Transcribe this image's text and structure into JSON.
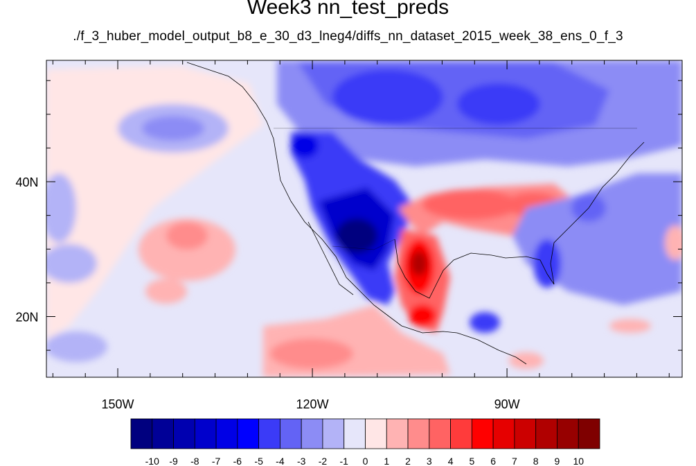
{
  "title": "Week3 nn_test_preds",
  "subtitle": "./f_3_huber_model_output_b8_e_30_d3_lneg4/diffs_nn_dataset_2015_week_38_ens_0_f_3",
  "map": {
    "lon_range": [
      -161,
      -63
    ],
    "lat_range": [
      11,
      58
    ],
    "lon_labels": [
      {
        "lon": -150,
        "label": "150W"
      },
      {
        "lon": -120,
        "label": "120W"
      },
      {
        "lon": -90,
        "label": "90W"
      }
    ],
    "lat_labels": [
      {
        "lat": 40,
        "label": "40N"
      },
      {
        "lat": 20,
        "label": "20N"
      }
    ],
    "lon_minor_ticks": [
      -160,
      -155,
      -145,
      -140,
      -135,
      -130,
      -125,
      -115,
      -110,
      -105,
      -100,
      -95,
      -85,
      -80,
      -75,
      -70,
      -65
    ],
    "lat_minor_ticks": [
      15,
      25,
      30,
      35,
      45,
      50,
      55
    ]
  },
  "colorbar": {
    "labels": [
      "-10",
      "-9",
      "-8",
      "-7",
      "-6",
      "-5",
      "-4",
      "-3",
      "-2",
      "-1",
      "0",
      "1",
      "2",
      "3",
      "4",
      "5",
      "6",
      "7",
      "8",
      "9",
      "10"
    ],
    "colors": [
      "#00007f",
      "#000097",
      "#0000b0",
      "#0000cc",
      "#0000e6",
      "#0000ff",
      "#3b3bf7",
      "#6363f5",
      "#8c8cf5",
      "#b3b3f7",
      "#e6e6fa",
      "#ffe6e6",
      "#ffb3b3",
      "#ff8c8c",
      "#ff6363",
      "#ff3b3b",
      "#ff0000",
      "#e60000",
      "#cc0000",
      "#b00000",
      "#970000",
      "#7f0000"
    ]
  }
}
